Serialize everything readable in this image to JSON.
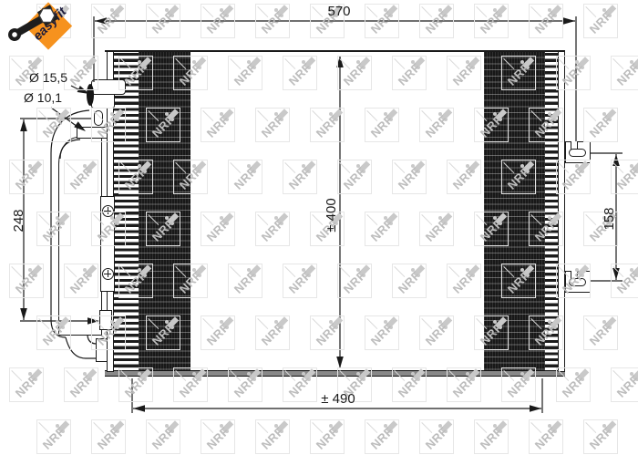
{
  "badge": {
    "label": "easyfit"
  },
  "watermark": {
    "text": "NRF"
  },
  "dimensions": {
    "top_width": "570",
    "bottom_width": "± 490",
    "core_height": "± 400",
    "receiver_drier_height": "248",
    "bracket_distance": "158",
    "port_large": "Ø 15,5",
    "port_small": "Ø 10,1"
  },
  "colors": {
    "accent_orange": "#F6921E",
    "badge_text": "#1B1B3B",
    "line": "#1A1A1A",
    "watermark_gray": "#BDBDBD",
    "core_dark": "#181818"
  }
}
